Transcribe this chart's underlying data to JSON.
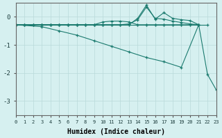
{
  "xlabel": "Humidex (Indice chaleur)",
  "bg_color": "#d6f0f0",
  "line_color": "#1a7a6e",
  "grid_color": "#b8dada",
  "xlim": [
    0,
    23
  ],
  "ylim": [
    -3.5,
    0.5
  ],
  "yticks": [
    0,
    -1,
    -2,
    -3
  ],
  "xticks": [
    0,
    1,
    2,
    3,
    4,
    5,
    6,
    7,
    8,
    9,
    10,
    11,
    12,
    13,
    14,
    15,
    16,
    17,
    18,
    19,
    20,
    21,
    22,
    23
  ],
  "series": [
    {
      "x": [
        0,
        1,
        2,
        3,
        4,
        5,
        6,
        7,
        8,
        9,
        10,
        11,
        12,
        13,
        14,
        15,
        16,
        17,
        18,
        19,
        20,
        21,
        22
      ],
      "y": [
        -0.28,
        -0.28,
        -0.28,
        -0.28,
        -0.28,
        -0.28,
        -0.28,
        -0.28,
        -0.28,
        -0.28,
        -0.28,
        -0.28,
        -0.28,
        -0.28,
        -0.28,
        -0.28,
        -0.28,
        -0.28,
        -0.28,
        -0.28,
        -0.28,
        -0.28,
        -0.28
      ]
    },
    {
      "x": [
        0,
        1,
        2,
        3,
        4,
        5,
        6,
        7,
        8,
        9,
        10,
        11,
        12,
        13,
        14,
        15,
        16,
        17,
        18,
        19,
        20,
        21
      ],
      "y": [
        -0.28,
        -0.28,
        -0.28,
        -0.28,
        -0.28,
        -0.28,
        -0.28,
        -0.28,
        -0.28,
        -0.28,
        -0.18,
        -0.15,
        -0.15,
        -0.18,
        -0.28,
        -0.28,
        -0.28,
        -0.28,
        -0.28,
        -0.28,
        -0.28,
        -0.28
      ]
    },
    {
      "x": [
        0,
        1,
        2,
        3,
        4,
        5,
        6,
        7,
        8,
        9,
        10,
        11,
        12,
        13,
        14,
        15,
        16,
        17,
        18,
        19,
        20,
        21
      ],
      "y": [
        -0.28,
        -0.28,
        -0.28,
        -0.28,
        -0.28,
        -0.28,
        -0.28,
        -0.28,
        -0.28,
        -0.28,
        -0.28,
        -0.28,
        -0.28,
        -0.25,
        -0.1,
        0.35,
        -0.05,
        -0.08,
        -0.15,
        -0.2,
        -0.25,
        -0.28
      ]
    },
    {
      "x": [
        0,
        1,
        2,
        3,
        4,
        5,
        6,
        7,
        8,
        9,
        10,
        11,
        12,
        13,
        14,
        15,
        16,
        17,
        18,
        19,
        20,
        21
      ],
      "y": [
        -0.28,
        -0.28,
        -0.28,
        -0.28,
        -0.28,
        -0.28,
        -0.28,
        -0.28,
        -0.28,
        -0.28,
        -0.28,
        -0.28,
        -0.28,
        -0.28,
        -0.05,
        0.42,
        -0.08,
        0.15,
        -0.05,
        -0.1,
        -0.13,
        -0.28
      ]
    },
    {
      "x": [
        0,
        3,
        5,
        7,
        9,
        11,
        13,
        15,
        17,
        19,
        21,
        22,
        23
      ],
      "y": [
        -0.28,
        -0.35,
        -0.5,
        -0.65,
        -0.85,
        -1.05,
        -1.25,
        -1.45,
        -1.6,
        -1.8,
        -0.28,
        -2.05,
        -2.6
      ]
    }
  ]
}
